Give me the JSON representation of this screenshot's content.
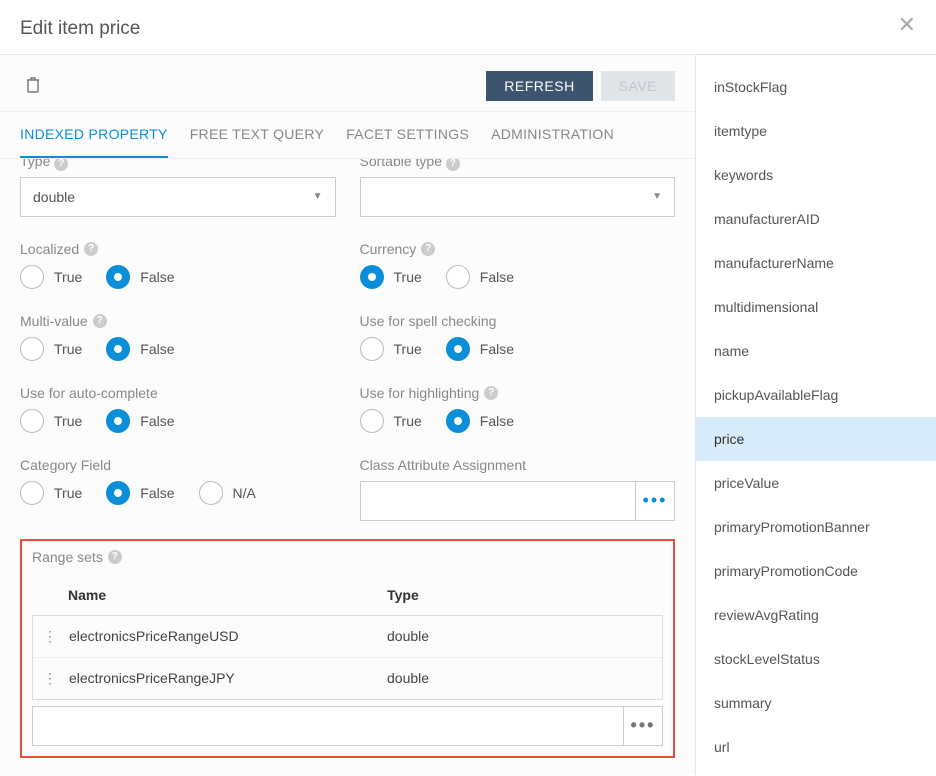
{
  "header": {
    "title": "Edit item price"
  },
  "toolbar": {
    "refresh": "REFRESH",
    "save": "SAVE"
  },
  "tabs": {
    "indexed": "INDEXED PROPERTY",
    "freetext": "FREE TEXT QUERY",
    "facet": "FACET SETTINGS",
    "admin": "ADMINISTRATION"
  },
  "form": {
    "type_label_cut": "Type",
    "sortable_label_cut": "Sortable type",
    "type_value": "double",
    "sortable_value": "",
    "localized_label": "Localized",
    "currency_label": "Currency",
    "multivalue_label": "Multi-value",
    "spell_label": "Use for spell checking",
    "autocomplete_label": "Use for auto-complete",
    "highlight_label": "Use for highlighting",
    "category_label": "Category Field",
    "class_label": "Class Attribute Assignment",
    "true": "True",
    "false": "False",
    "na": "N/A"
  },
  "range": {
    "label": "Range sets",
    "col_name": "Name",
    "col_type": "Type",
    "rows": [
      {
        "name": "electronicsPriceRangeUSD",
        "type": "double"
      },
      {
        "name": "electronicsPriceRangeJPY",
        "type": "double"
      }
    ]
  },
  "sidebar": {
    "items": [
      "inStockFlag",
      "itemtype",
      "keywords",
      "manufacturerAID",
      "manufacturerName",
      "multidimensional",
      "name",
      "pickupAvailableFlag",
      "price",
      "priceValue",
      "primaryPromotionBanner",
      "primaryPromotionCode",
      "reviewAvgRating",
      "stockLevelStatus",
      "summary",
      "url"
    ],
    "selected": "price"
  }
}
